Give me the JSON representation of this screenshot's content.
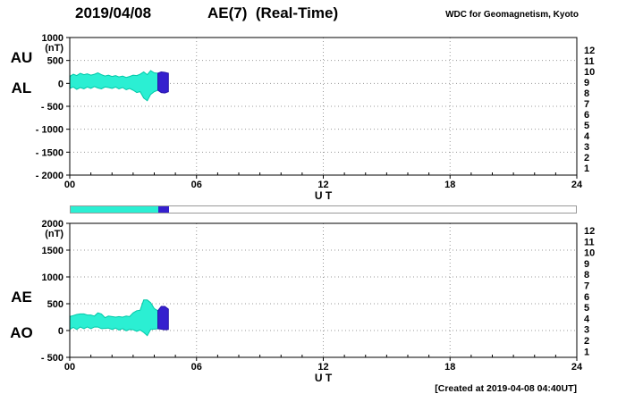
{
  "header": {
    "date": "2019/04/08",
    "title": "AE(7)  (Real-Time)",
    "source": "WDC for Geomagnetism, Kyoto"
  },
  "footer": {
    "created": "[Created at 2019-04-08 04:40UT]"
  },
  "colors": {
    "band": "#2BEFD3",
    "band_edge": "#00C9A8",
    "recent": "#3520CE",
    "recent_edge": "#2513A8",
    "grid": "#999999"
  },
  "stations": [
    {
      "n": "12",
      "color": "#FF00CC"
    },
    {
      "n": "11",
      "color": "#FF2200"
    },
    {
      "n": "10",
      "color": "#FF8800"
    },
    {
      "n": "9",
      "color": "#FFCC00"
    },
    {
      "n": "8",
      "color": "#00BB66"
    },
    {
      "n": "7",
      "color": "#00CCCC"
    },
    {
      "n": "6",
      "color": "#44AAFF"
    },
    {
      "n": "5",
      "color": "#2244EE"
    },
    {
      "n": "4",
      "color": "#8833EE"
    },
    {
      "n": "3",
      "color": "#444444"
    },
    {
      "n": "2",
      "color": "#999999"
    },
    {
      "n": "1",
      "color": "#CCCCCC"
    }
  ],
  "availability_bar": {
    "main_until_hour": 4.17,
    "recent_until_hour": 4.67,
    "total_hours": 24
  },
  "chart_data": [
    {
      "type": "area",
      "left_labels": [
        "AU",
        "AL"
      ],
      "unit": "(nT)",
      "xlabel": "U T",
      "xlim": [
        0,
        24
      ],
      "xtick_hours": [
        0,
        6,
        12,
        18,
        24
      ],
      "xtick_labels": [
        "00",
        "06",
        "12",
        "18",
        "24"
      ],
      "ylim": [
        -2000,
        1000
      ],
      "yticks": [
        1000,
        500,
        0,
        -500,
        -1000,
        -1500,
        -2000
      ],
      "ytick_labels": [
        "1000",
        "500",
        "0",
        "- 500",
        "- 1000",
        "- 1500",
        "- 2000"
      ],
      "x_hours": [
        0,
        0.17,
        0.33,
        0.5,
        0.67,
        0.83,
        1,
        1.17,
        1.33,
        1.5,
        1.67,
        1.83,
        2,
        2.17,
        2.33,
        2.5,
        2.67,
        2.83,
        3,
        3.17,
        3.33,
        3.5,
        3.67,
        3.83,
        4,
        4.17,
        4.33,
        4.5,
        4.67
      ],
      "series": [
        {
          "name": "AU",
          "values": [
            150,
            200,
            170,
            220,
            190,
            210,
            180,
            200,
            230,
            190,
            160,
            180,
            150,
            170,
            140,
            160,
            130,
            150,
            180,
            170,
            200,
            250,
            190,
            280,
            230,
            220,
            250,
            240,
            220
          ]
        },
        {
          "name": "AL",
          "values": [
            -110,
            -80,
            -130,
            -90,
            -120,
            -80,
            -110,
            -70,
            -100,
            -120,
            -80,
            -90,
            -110,
            -80,
            -120,
            -90,
            -140,
            -110,
            -150,
            -200,
            -180,
            -320,
            -380,
            -240,
            -180,
            -150,
            -200,
            -210,
            -180
          ]
        }
      ],
      "recent_start_hour": 4.17
    },
    {
      "type": "area",
      "left_labels": [
        "AE",
        "AO"
      ],
      "unit": "(nT)",
      "xlabel": "U T",
      "xlim": [
        0,
        24
      ],
      "xtick_hours": [
        0,
        6,
        12,
        18,
        24
      ],
      "xtick_labels": [
        "00",
        "06",
        "12",
        "18",
        "24"
      ],
      "ylim": [
        -500,
        2000
      ],
      "yticks": [
        2000,
        1500,
        1000,
        500,
        0,
        -500
      ],
      "ytick_labels": [
        "2000",
        "1500",
        "1000",
        "500",
        "0",
        "- 500"
      ],
      "x_hours": [
        0,
        0.17,
        0.33,
        0.5,
        0.67,
        0.83,
        1,
        1.17,
        1.33,
        1.5,
        1.67,
        1.83,
        2,
        2.17,
        2.33,
        2.5,
        2.67,
        2.83,
        3,
        3.17,
        3.33,
        3.5,
        3.67,
        3.83,
        4,
        4.17,
        4.33,
        4.5,
        4.67
      ],
      "series": [
        {
          "name": "AE",
          "values": [
            260,
            280,
            300,
            310,
            310,
            290,
            290,
            270,
            330,
            310,
            240,
            270,
            260,
            250,
            260,
            250,
            270,
            260,
            330,
            370,
            380,
            570,
            570,
            520,
            410,
            370,
            450,
            450,
            400
          ]
        },
        {
          "name": "AO",
          "values": [
            20,
            60,
            20,
            65,
            35,
            65,
            35,
            65,
            65,
            35,
            40,
            45,
            20,
            45,
            10,
            35,
            -5,
            20,
            15,
            -15,
            10,
            -35,
            -95,
            20,
            25,
            35,
            25,
            15,
            20
          ]
        }
      ],
      "recent_start_hour": 4.17
    }
  ]
}
